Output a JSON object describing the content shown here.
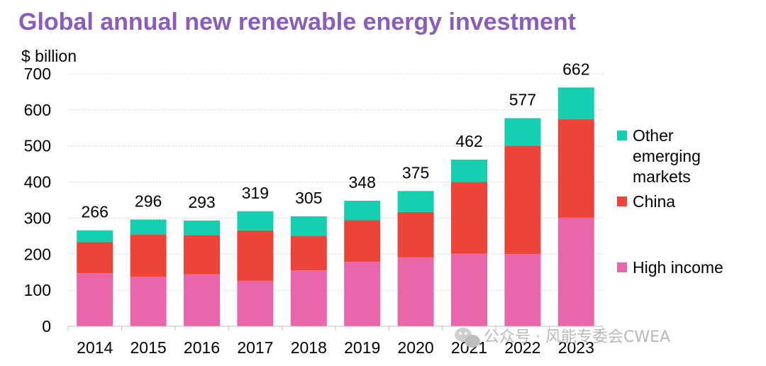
{
  "chart_data": {
    "type": "bar",
    "stacked": true,
    "title": "Global annual new renewable energy investment",
    "ylabel": "$ billion",
    "xlabel": "",
    "ylim": [
      0,
      700
    ],
    "yticks": [
      0,
      100,
      200,
      300,
      400,
      500,
      600,
      700
    ],
    "categories": [
      "2014",
      "2015",
      "2016",
      "2017",
      "2018",
      "2019",
      "2020",
      "2021",
      "2022",
      "2023"
    ],
    "series": [
      {
        "name": "High income",
        "color": "#e966ab",
        "values": [
          147,
          137,
          144,
          126,
          155,
          179,
          191,
          201,
          200,
          301
        ]
      },
      {
        "name": "China",
        "color": "#ee4338",
        "values": [
          86,
          118,
          109,
          140,
          96,
          115,
          126,
          199,
          301,
          273
        ]
      },
      {
        "name": "Other emerging markets",
        "color": "#14d0b0",
        "values": [
          33,
          41,
          40,
          53,
          54,
          54,
          58,
          62,
          76,
          88
        ]
      }
    ],
    "totals": [
      266,
      296,
      293,
      319,
      305,
      348,
      375,
      462,
      577,
      662
    ],
    "legend": {
      "placement": "right",
      "entries": [
        {
          "lines": [
            "Other",
            "emerging",
            "markets"
          ],
          "color": "#14d0b0"
        },
        {
          "lines": [
            "China"
          ],
          "color": "#ee4338"
        },
        {
          "lines": [
            "High income"
          ],
          "color": "#e966ab"
        }
      ]
    },
    "grid": true,
    "title_color": "#8a5cbd"
  },
  "watermark": {
    "text": "公众号 · 风能专委会CWEA",
    "icon": "wechat-icon"
  }
}
